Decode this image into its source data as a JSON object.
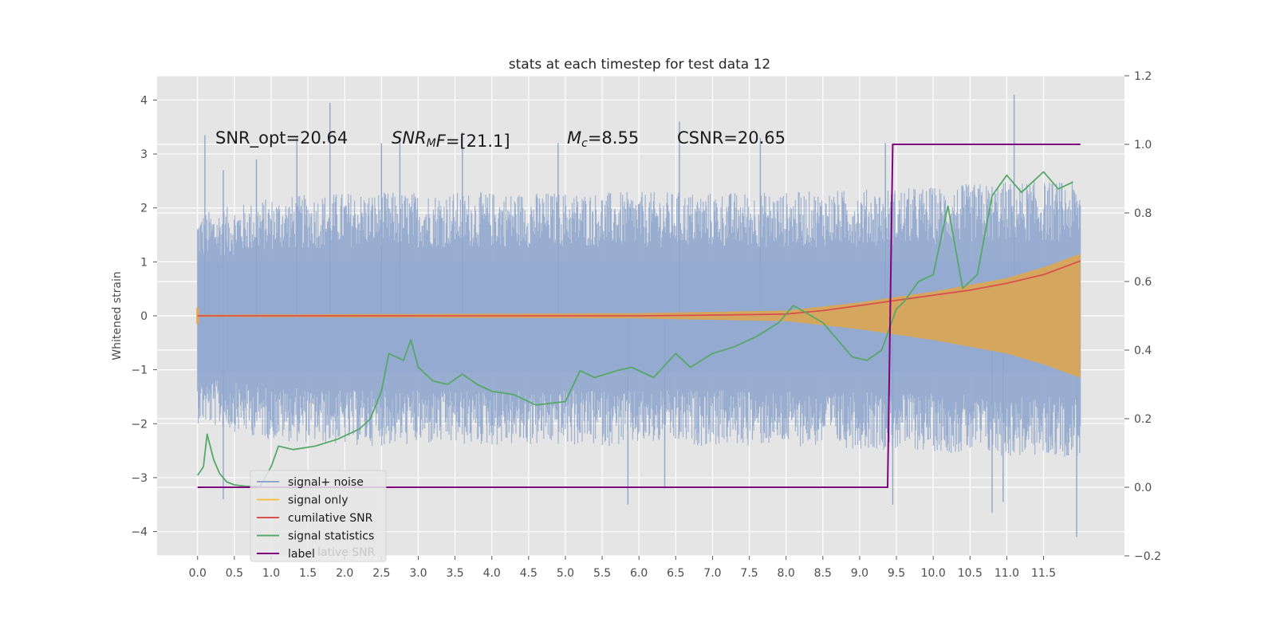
{
  "chart_data": {
    "type": "line",
    "title": "stats at each timestep for test data 12",
    "ylabel": "Whitened strain",
    "xlim": [
      -0.55,
      12.6
    ],
    "ylim": [
      -4.45,
      4.45
    ],
    "y2lim": [
      -0.2,
      1.2
    ],
    "xticks": [
      "0.0",
      "0.5",
      "1.0",
      "1.5",
      "2.0",
      "2.5",
      "3.0",
      "3.5",
      "4.0",
      "4.5",
      "5.0",
      "5.5",
      "6.0",
      "6.5",
      "7.0",
      "7.5",
      "8.0",
      "8.5",
      "9.0",
      "9.5",
      "10.0",
      "10.5",
      "11.0",
      "11.5"
    ],
    "yticks": [
      "4",
      "3",
      "2",
      "1",
      "0",
      "−1",
      "−2",
      "−3",
      "−4"
    ],
    "y2ticks": [
      "1.2",
      "1.0",
      "0.8",
      "0.6",
      "0.4",
      "0.2",
      "0.0",
      "−0.2"
    ],
    "annotations": [
      {
        "name": "snr-opt",
        "text": "SNR_opt=20.64"
      },
      {
        "name": "snr-mf",
        "text": "SNR",
        "sub": "M",
        "tail": "F=[21.1]"
      },
      {
        "name": "mc",
        "text": "M",
        "sub": "c",
        "tail": "=8.55"
      },
      {
        "name": "csnr",
        "text": "CSNR=20.65"
      }
    ],
    "legend": {
      "placement": "lower-left",
      "entries": [
        {
          "label": "signal+ noise",
          "color": "#8fa6cc"
        },
        {
          "label": "signal only",
          "color": "#f0c04a"
        },
        {
          "label": "cumilative SNR",
          "color": "#d9514e"
        },
        {
          "label": "signal statistics",
          "color": "#55a868"
        },
        {
          "label": "label",
          "color": "#800080"
        }
      ],
      "ghost_text": "lative SNR"
    },
    "series": [
      {
        "name": "signal+ noise",
        "axis": "left",
        "style": "noise-band",
        "x_range": [
          0.0,
          12.0
        ],
        "envelope": [
          {
            "x": 0.0,
            "y": 1.9
          },
          {
            "x": 1.0,
            "y": 2.2
          },
          {
            "x": 2.0,
            "y": 2.3
          },
          {
            "x": 4.0,
            "y": 2.3
          },
          {
            "x": 6.0,
            "y": 2.3
          },
          {
            "x": 8.0,
            "y": 2.3
          },
          {
            "x": 10.0,
            "y": 2.4
          },
          {
            "x": 11.0,
            "y": 2.5
          },
          {
            "x": 12.0,
            "y": 2.5
          }
        ],
        "peaks": [
          {
            "x": 0.1,
            "y": 3.35
          },
          {
            "x": 0.35,
            "y": 2.7
          },
          {
            "x": 0.8,
            "y": 2.9
          },
          {
            "x": 1.35,
            "y": 3.3
          },
          {
            "x": 1.8,
            "y": 3.95
          },
          {
            "x": 2.5,
            "y": 3.2
          },
          {
            "x": 2.75,
            "y": 3.3
          },
          {
            "x": 3.6,
            "y": 3.4
          },
          {
            "x": 4.9,
            "y": 3.2
          },
          {
            "x": 6.55,
            "y": 3.6
          },
          {
            "x": 7.65,
            "y": 3.3
          },
          {
            "x": 9.35,
            "y": 3.2
          },
          {
            "x": 11.1,
            "y": 4.1
          },
          {
            "x": 0.35,
            "y": -3.4
          },
          {
            "x": 5.85,
            "y": -3.5
          },
          {
            "x": 6.35,
            "y": -3.2
          },
          {
            "x": 9.45,
            "y": -3.5
          },
          {
            "x": 10.8,
            "y": -3.65
          },
          {
            "x": 10.95,
            "y": -3.45
          },
          {
            "x": 11.95,
            "y": -4.1
          }
        ]
      },
      {
        "name": "signal only",
        "axis": "left",
        "style": "chirp-band",
        "x_range": [
          0.0,
          12.0
        ],
        "envelope": [
          {
            "x": 0.0,
            "y": 0.02
          },
          {
            "x": 6.0,
            "y": 0.05
          },
          {
            "x": 8.0,
            "y": 0.1
          },
          {
            "x": 9.0,
            "y": 0.25
          },
          {
            "x": 10.0,
            "y": 0.45
          },
          {
            "x": 11.0,
            "y": 0.7
          },
          {
            "x": 11.5,
            "y": 0.9
          },
          {
            "x": 12.0,
            "y": 1.15
          }
        ]
      },
      {
        "name": "cumilative SNR",
        "axis": "right",
        "x": [
          0.0,
          2.0,
          4.0,
          6.0,
          7.0,
          8.0,
          8.5,
          9.0,
          9.5,
          10.0,
          10.5,
          11.0,
          11.5,
          12.0
        ],
        "values": [
          0.5,
          0.5,
          0.5,
          0.5,
          0.502,
          0.505,
          0.515,
          0.53,
          0.545,
          0.56,
          0.575,
          0.595,
          0.62,
          0.66
        ]
      },
      {
        "name": "signal statistics",
        "axis": "right",
        "x": [
          0.0,
          0.08,
          0.13,
          0.22,
          0.3,
          0.4,
          0.5,
          0.65,
          0.85,
          1.0,
          1.1,
          1.3,
          1.6,
          1.9,
          2.2,
          2.35,
          2.5,
          2.6,
          2.8,
          2.9,
          3.0,
          3.2,
          3.4,
          3.6,
          3.8,
          4.0,
          4.3,
          4.6,
          5.0,
          5.2,
          5.4,
          5.7,
          5.9,
          6.2,
          6.5,
          6.7,
          7.0,
          7.3,
          7.6,
          7.9,
          8.1,
          8.5,
          8.9,
          9.1,
          9.3,
          9.5,
          9.6,
          9.8,
          10.0,
          10.2,
          10.4,
          10.6,
          10.8,
          11.0,
          11.2,
          11.5,
          11.7,
          11.9
        ],
        "values": [
          0.035,
          0.06,
          0.155,
          0.08,
          0.04,
          0.015,
          0.007,
          0.003,
          0.002,
          0.06,
          0.12,
          0.11,
          0.12,
          0.14,
          0.17,
          0.2,
          0.28,
          0.39,
          0.37,
          0.43,
          0.35,
          0.31,
          0.3,
          0.33,
          0.3,
          0.28,
          0.27,
          0.24,
          0.25,
          0.34,
          0.32,
          0.34,
          0.35,
          0.32,
          0.39,
          0.35,
          0.39,
          0.41,
          0.44,
          0.48,
          0.53,
          0.48,
          0.38,
          0.37,
          0.4,
          0.52,
          0.54,
          0.6,
          0.62,
          0.82,
          0.58,
          0.62,
          0.85,
          0.91,
          0.86,
          0.92,
          0.87,
          0.89
        ]
      },
      {
        "name": "label",
        "axis": "right",
        "x": [
          0.0,
          9.38,
          9.45,
          12.0
        ],
        "values": [
          0.0,
          0.0,
          1.0,
          1.0
        ]
      }
    ]
  }
}
